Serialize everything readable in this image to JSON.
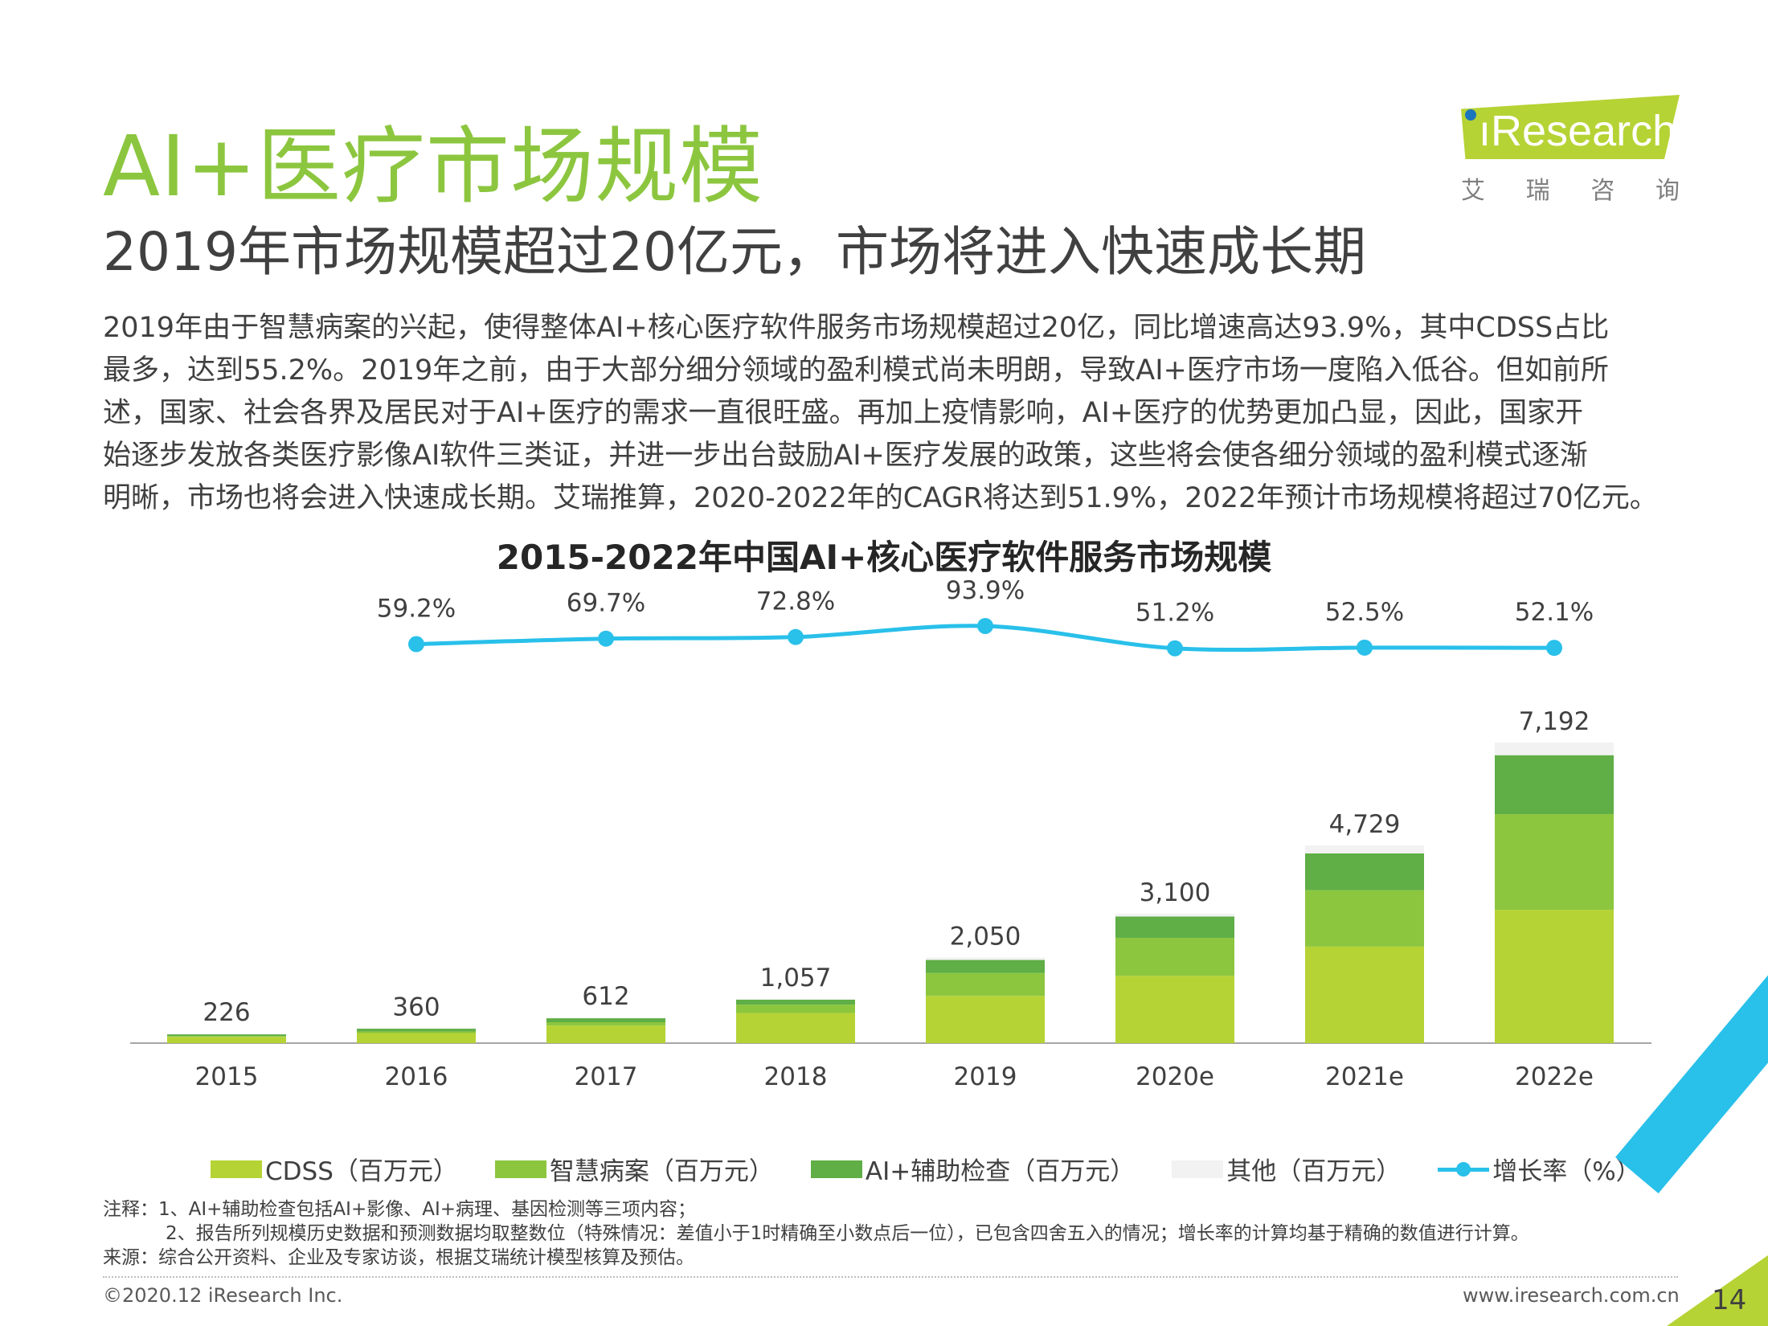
{
  "header": {
    "title": "AI+医疗市场规模",
    "subtitle": "2019年市场规模超过20亿元，市场将进入快速成长期"
  },
  "logo": {
    "text": "Research",
    "sub": [
      "艾",
      "瑞",
      "咨",
      "询"
    ]
  },
  "summary_lines": [
    "2019年由于智慧病案的兴起，使得整体AI+核心医疗软件服务市场规模超过20亿，同比增速高达93.9%，其中CDSS占比",
    "最多，达到55.2%。2019年之前，由于大部分细分领域的盈利模式尚未明朗，导致AI+医疗市场一度陷入低谷。但如前所",
    "述，国家、社会各界及居民对于AI+医疗的需求一直很旺盛。再加上疫情影响，AI+医疗的优势更加凸显，因此，国家开",
    "始逐步发放各类医疗影像AI软件三类证，并进一步出台鼓励AI+医疗发展的政策，这些将会使各细分领域的盈利模式逐渐",
    "明晰，市场也将会进入快速成长期。艾瑞推算，2020-2022年的CAGR将达到51.9%，2022年预计市场规模将超过70亿元。"
  ],
  "chart_data": {
    "type": "bar",
    "stacked": true,
    "title": "2015-2022年中国AI+核心医疗软件服务市场规模",
    "categories": [
      "2015",
      "2016",
      "2017",
      "2018",
      "2019",
      "2020e",
      "2021e",
      "2022e"
    ],
    "totals": [
      226,
      360,
      612,
      1057,
      2050,
      3100,
      4729,
      7192
    ],
    "total_labels": [
      "226",
      "360",
      "612",
      "1,057",
      "2,050",
      "3,100",
      "4,729",
      "7,192"
    ],
    "series": [
      {
        "name": "CDSS（百万元）",
        "color": "#b5d334",
        "values": [
          150,
          240,
          420,
          720,
          1130,
          1610,
          2310,
          3190
        ]
      },
      {
        "name": "智慧病案（百万元）",
        "color": "#8cc63f",
        "values": [
          20,
          40,
          80,
          200,
          550,
          910,
          1350,
          2290
        ]
      },
      {
        "name": "AI+辅助检查（百万元）",
        "color": "#5fae46",
        "values": [
          40,
          65,
          95,
          120,
          310,
          510,
          880,
          1410
        ]
      },
      {
        "name": "其他（百万元）",
        "color": "#f2f2f2",
        "values": [
          16,
          15,
          17,
          17,
          60,
          70,
          189,
          302
        ]
      }
    ],
    "line_series": {
      "name": "增长率（%）",
      "color": "#29c0ea",
      "values": [
        59.2,
        69.7,
        72.8,
        93.9,
        51.2,
        52.5,
        52.1
      ],
      "labels": [
        "59.2%",
        "69.7%",
        "72.8%",
        "93.9%",
        "51.2%",
        "52.5%",
        "52.1%"
      ]
    },
    "ylim": [
      0,
      8000
    ],
    "growth_ylim": [
      -120,
      100
    ],
    "legend_position": "bottom"
  },
  "notes": {
    "line1": "注释：1、AI+辅助检查包括AI+影像、AI+病理、基因检测等三项内容；",
    "line2": "2、报告所列规模历史数据和预测数据均取整数位（特殊情况：差值小于1时精确至小数点后一位），已包含四舍五入的情况；增长率的计算均基于精确的数值进行计算。",
    "line3": "来源：综合公开资料、企业及专家访谈，根据艾瑞统计模型核算及预估。"
  },
  "footer": {
    "copyright": "©2020.12 iResearch Inc.",
    "website": "www.iresearch.com.cn",
    "page_number": "14"
  }
}
